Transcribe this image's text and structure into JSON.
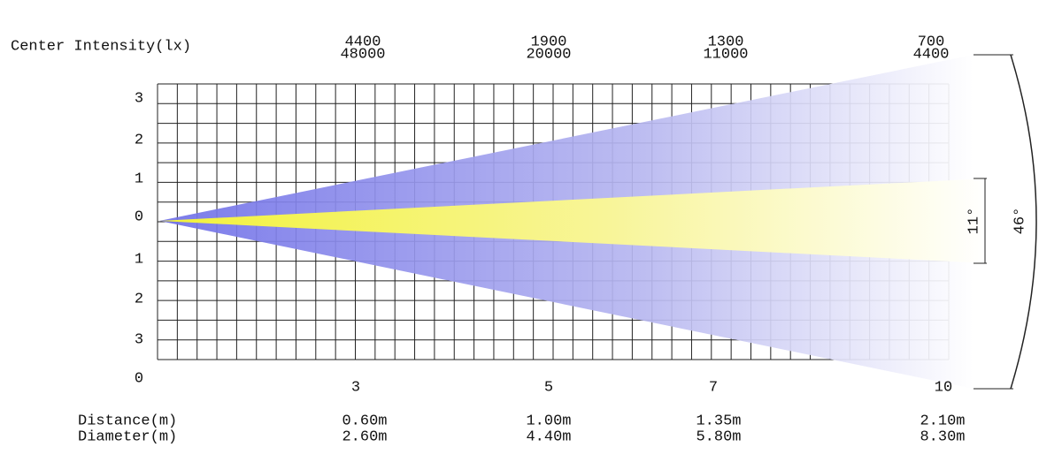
{
  "intensity_label": "Center Intensity(lx)",
  "intensity": [
    [
      "4400",
      "48000"
    ],
    [
      "1900",
      "20000"
    ],
    [
      "1300",
      "11000"
    ],
    [
      "700",
      "4400"
    ]
  ],
  "y_labels": [
    "3",
    "2",
    "1",
    "0",
    "1",
    "2",
    "3",
    "0"
  ],
  "distance_markers": [
    "3",
    "5",
    "7",
    "10"
  ],
  "row_labels": [
    "Distance(m)",
    "Diameter(m)"
  ],
  "columns": [
    [
      "0.60m",
      "2.60m"
    ],
    [
      "1.00m",
      "4.40m"
    ],
    [
      "1.35m",
      "5.80m"
    ],
    [
      "2.10m",
      "8.30m"
    ]
  ],
  "angles": [
    "11°",
    "46°"
  ]
}
